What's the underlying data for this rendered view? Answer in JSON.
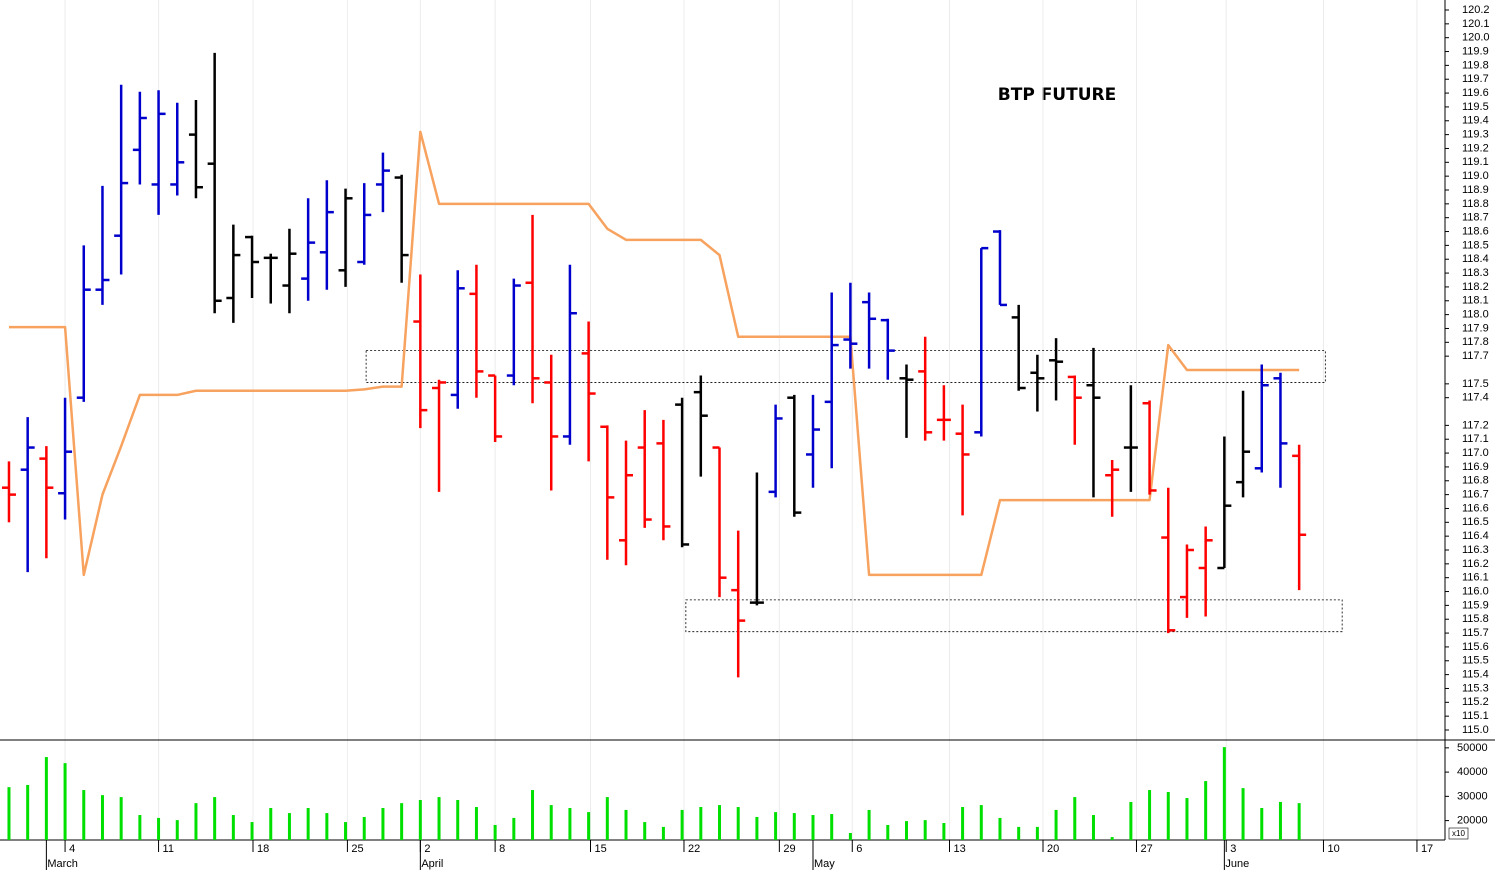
{
  "chart_data": {
    "type": "ohlc",
    "title": "BTP FUTURE",
    "categories": [
      null,
      null,
      null,
      null,
      null,
      null,
      null,
      null,
      null,
      null,
      null,
      null,
      null,
      null,
      null,
      null,
      null,
      null,
      null,
      null,
      null,
      null,
      null,
      null,
      null,
      null,
      null,
      null,
      null,
      null,
      null,
      null,
      null,
      null,
      null,
      null,
      null,
      null,
      null,
      null,
      null,
      null,
      null,
      null,
      null,
      null,
      null,
      null,
      null,
      null,
      null,
      null,
      null,
      null,
      null,
      null,
      null,
      null,
      null,
      null,
      null,
      null,
      null,
      null,
      null,
      null,
      null,
      null,
      null,
      null
    ],
    "xlim": [
      -0.48,
      76.8
    ],
    "xticks": [
      {
        "value": 3,
        "label": "4"
      },
      {
        "value": 8,
        "label": "11"
      },
      {
        "value": 13.05,
        "label": "18"
      },
      {
        "value": 18.1,
        "label": "25"
      },
      {
        "value": 22,
        "label": "2"
      },
      {
        "value": 26,
        "label": "8"
      },
      {
        "value": 31.1,
        "label": "15"
      },
      {
        "value": 36.1,
        "label": "22"
      },
      {
        "value": 41.2,
        "label": "29"
      },
      {
        "value": 45.1,
        "label": "6"
      },
      {
        "value": 50.3,
        "label": "13"
      },
      {
        "value": 55.3,
        "label": "20"
      },
      {
        "value": 60.3,
        "label": "27"
      },
      {
        "value": 65.1,
        "label": "3"
      },
      {
        "value": 70.3,
        "label": "10"
      },
      {
        "value": 75.3,
        "label": "17"
      }
    ],
    "month_ticks": [
      {
        "value": 2,
        "label": "March"
      },
      {
        "value": 22,
        "label": "April"
      },
      {
        "value": 43,
        "label": "May"
      },
      {
        "value": 65,
        "label": "June"
      }
    ],
    "ylim": [
      115.0,
      120.2
    ],
    "yticks": [
      120.2,
      120.1,
      {
        "value": 120,
        "label": "120.0"
      },
      119.9,
      119.8,
      119.7,
      119.6,
      119.5,
      119.4,
      119.3,
      119.2,
      119.1,
      {
        "value": 119,
        "label": "119.0"
      },
      118.9,
      118.8,
      118.7,
      118.6,
      118.5,
      118.4,
      118.3,
      118.2,
      118.1,
      {
        "value": 118,
        "label": "118.0"
      },
      117.9,
      117.8,
      117.7,
      117.5,
      117.4,
      117.2,
      117.1,
      {
        "value": 117,
        "label": "117.0"
      },
      116.9,
      116.8,
      116.7,
      116.6,
      116.5,
      116.4,
      116.3,
      116.2,
      116.1,
      {
        "value": 116,
        "label": "116.0"
      },
      115.9,
      115.8,
      115.7,
      115.6,
      115.5,
      115.4,
      115.3,
      115.2,
      115.1,
      {
        "value": 115,
        "label": "115.0"
      }
    ],
    "open": [
      116.75,
      116.88,
      116.96,
      116.71,
      117.4,
      118.18,
      118.57,
      119.19,
      118.94,
      118.94,
      119.3,
      119.09,
      118.12,
      118.56,
      118.41,
      118.21,
      118.26,
      118.45,
      118.32,
      118.38,
      118.94,
      118.99,
      117.95,
      117.47,
      117.42,
      118.15,
      117.56,
      117.56,
      118.23,
      117.51,
      117.12,
      117.72,
      117.19,
      116.37,
      117.04,
      117.07,
      117.35,
      117.44,
      117.04,
      116.01,
      115.92,
      116.72,
      117.4,
      116.99,
      117.37,
      117.82,
      118.09,
      117.96,
      117.54,
      117.59,
      117.24,
      117.14,
      117.15,
      118.6,
      117.98,
      117.58,
      117.67,
      117.55,
      117.49,
      116.84,
      117.04,
      117.36,
      116.39,
      115.96,
      116.17,
      116.17,
      116.79,
      116.89,
      117.54,
      116.98
    ],
    "high": [
      116.94,
      117.26,
      117.05,
      117.4,
      118.5,
      118.93,
      119.66,
      119.61,
      119.62,
      119.53,
      119.55,
      119.89,
      118.65,
      118.57,
      118.44,
      118.62,
      118.84,
      118.97,
      118.91,
      118.95,
      119.17,
      119.01,
      118.29,
      117.53,
      118.32,
      118.36,
      117.56,
      118.26,
      118.72,
      117.71,
      118.36,
      117.95,
      117.2,
      117.09,
      117.31,
      117.24,
      117.4,
      117.56,
      117.04,
      116.44,
      116.86,
      117.35,
      117.42,
      117.42,
      118.16,
      118.23,
      118.16,
      117.97,
      117.64,
      117.84,
      117.49,
      117.35,
      118.48,
      118.61,
      118.07,
      117.71,
      117.83,
      117.56,
      117.76,
      116.95,
      117.49,
      117.38,
      116.75,
      116.34,
      116.47,
      117.12,
      117.45,
      117.64,
      117.58,
      117.06
    ],
    "low": [
      116.5,
      116.14,
      116.24,
      116.52,
      117.37,
      118.07,
      118.29,
      118.94,
      118.72,
      118.86,
      118.84,
      118.01,
      117.94,
      118.12,
      118.08,
      118.01,
      118.1,
      118.18,
      118.2,
      118.36,
      118.74,
      118.23,
      117.18,
      116.72,
      117.32,
      117.4,
      117.08,
      117.49,
      117.36,
      116.73,
      117.06,
      116.94,
      116.23,
      116.19,
      116.46,
      116.37,
      116.32,
      116.83,
      115.96,
      115.38,
      115.9,
      116.68,
      116.54,
      116.75,
      116.89,
      117.61,
      117.61,
      117.53,
      117.11,
      117.09,
      117.09,
      116.55,
      117.12,
      118.07,
      117.45,
      117.3,
      117.38,
      117.06,
      116.68,
      116.54,
      116.72,
      116.7,
      115.7,
      115.81,
      115.82,
      116.17,
      116.68,
      116.86,
      116.75,
      116.01
    ],
    "close": [
      116.7,
      117.04,
      116.75,
      117.01,
      118.18,
      118.25,
      118.95,
      119.42,
      119.45,
      119.1,
      118.92,
      118.1,
      118.43,
      118.38,
      118.41,
      118.44,
      118.52,
      118.74,
      118.84,
      118.72,
      119.04,
      118.43,
      117.31,
      117.51,
      118.19,
      117.59,
      117.12,
      118.21,
      117.54,
      117.12,
      118.01,
      117.43,
      116.68,
      116.84,
      116.52,
      116.47,
      116.34,
      117.27,
      116.1,
      115.79,
      115.92,
      117.25,
      116.57,
      117.17,
      117.78,
      117.79,
      117.97,
      117.74,
      117.53,
      117.15,
      117.24,
      116.99,
      118.48,
      118.07,
      117.47,
      117.54,
      117.66,
      117.4,
      117.4,
      116.88,
      117.04,
      116.73,
      115.72,
      116.3,
      116.37,
      116.62,
      117.01,
      117.49,
      117.07,
      116.41
    ],
    "colors": [
      "#f00",
      "#00c",
      "#f00",
      "#00c",
      "#00c",
      "#00c",
      "#00c",
      "#00c",
      "#00c",
      "#00c",
      "#000",
      "#000",
      "#000",
      "#000",
      "#000",
      "#000",
      "#00c",
      "#00c",
      "#000",
      "#00c",
      "#00c",
      "#000",
      "#f00",
      "#f00",
      "#00c",
      "#f00",
      "#f00",
      "#00c",
      "#f00",
      "#f00",
      "#00c",
      "#f00",
      "#f00",
      "#f00",
      "#f00",
      "#f00",
      "#000",
      "#000",
      "#f00",
      "#f00",
      "#000",
      "#00c",
      "#000",
      "#00c",
      "#00c",
      "#00c",
      "#00c",
      "#00c",
      "#000",
      "#f00",
      "#f00",
      "#f00",
      "#00c",
      "#00c",
      "#000",
      "#000",
      "#000",
      "#f00",
      "#000",
      "#f00",
      "#000",
      "#f00",
      "#f00",
      "#f00",
      "#f00",
      "#000",
      "#000",
      "#00c",
      "#00c",
      "#f00"
    ],
    "line": {
      "color": "#f7a25e",
      "values": [
        117.91,
        117.91,
        117.91,
        117.91,
        116.12,
        116.7,
        117.05,
        117.42,
        117.42,
        117.42,
        117.45,
        117.45,
        117.45,
        117.45,
        117.45,
        117.45,
        117.45,
        117.45,
        117.45,
        117.46,
        117.48,
        117.48,
        119.32,
        118.8,
        118.8,
        118.8,
        118.8,
        118.8,
        118.8,
        118.8,
        118.8,
        118.8,
        118.62,
        118.54,
        118.54,
        118.54,
        118.54,
        118.54,
        118.43,
        117.84,
        117.84,
        117.84,
        117.84,
        117.84,
        117.84,
        117.84,
        116.12,
        116.12,
        116.12,
        116.12,
        116.12,
        116.12,
        116.12,
        116.66,
        116.66,
        116.66,
        116.66,
        116.66,
        116.66,
        116.66,
        116.66,
        116.66,
        117.78,
        117.6,
        117.6,
        117.6,
        117.6,
        117.6,
        117.6,
        117.6
      ]
    },
    "zones": [
      {
        "x": [
          19.1,
          70.4
        ],
        "y": [
          117.51,
          117.74
        ]
      },
      {
        "x": [
          36.2,
          71.3
        ],
        "y": [
          115.71,
          115.94
        ]
      }
    ],
    "volume": {
      "color": "#00e000",
      "label": "x10",
      "ylim": [
        12000,
        52000
      ],
      "yticks": [
        20000,
        30000,
        40000,
        50000
      ],
      "values": [
        33800,
        34700,
        46200,
        43700,
        32600,
        30500,
        29700,
        22300,
        21100,
        20200,
        27200,
        29700,
        22300,
        19400,
        25200,
        23100,
        25200,
        23100,
        19400,
        21500,
        25200,
        27200,
        28500,
        29700,
        28500,
        25600,
        18200,
        21100,
        32600,
        26400,
        25200,
        23500,
        29700,
        24400,
        19400,
        17400,
        24400,
        25600,
        26400,
        25600,
        21500,
        23500,
        23100,
        22300,
        22700,
        14900,
        24400,
        18200,
        19800,
        20200,
        19000,
        25600,
        26400,
        21100,
        17400,
        17400,
        24400,
        29700,
        22300,
        13200,
        27700,
        32600,
        31800,
        29300,
        36300,
        50300,
        33400,
        25200,
        27700,
        27200
      ]
    }
  }
}
